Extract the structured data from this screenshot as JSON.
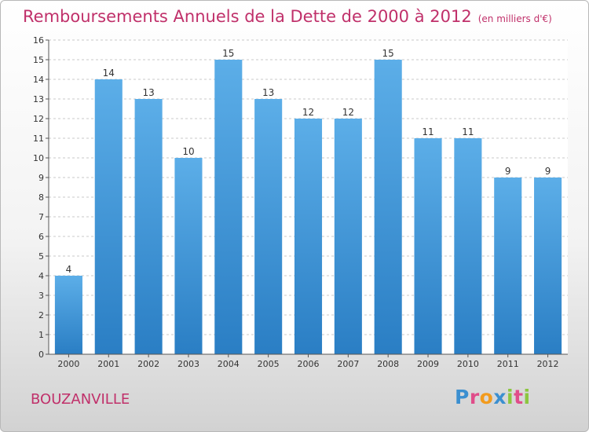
{
  "title": "Remboursements Annuels de la Dette de 2000 à 2012",
  "unit": "(en milliers d'€)",
  "place": "BOUZANVILLE",
  "logo": {
    "letters": [
      "P",
      "r",
      "o",
      "x",
      "i",
      "t",
      "i"
    ],
    "colors": [
      "#3b8fd0",
      "#e04d8a",
      "#f29b1d",
      "#3b8fd0",
      "#8cc63f",
      "#e04d8a",
      "#8cc63f"
    ]
  },
  "colors": {
    "title": "#c0306a",
    "bar_top": "#5caee8",
    "bar_bottom": "#2a7ec4"
  },
  "chart_data": {
    "type": "bar",
    "categories": [
      "2000",
      "2001",
      "2002",
      "2003",
      "2004",
      "2005",
      "2006",
      "2007",
      "2008",
      "2009",
      "2010",
      "2011",
      "2012"
    ],
    "values": [
      4,
      14,
      13,
      10,
      15,
      13,
      12,
      12,
      15,
      11,
      11,
      9,
      9
    ],
    "ylim": [
      0,
      16
    ],
    "yticks": [
      0,
      1,
      2,
      3,
      4,
      5,
      6,
      7,
      8,
      9,
      10,
      11,
      12,
      13,
      14,
      15,
      16
    ],
    "grid": true
  }
}
